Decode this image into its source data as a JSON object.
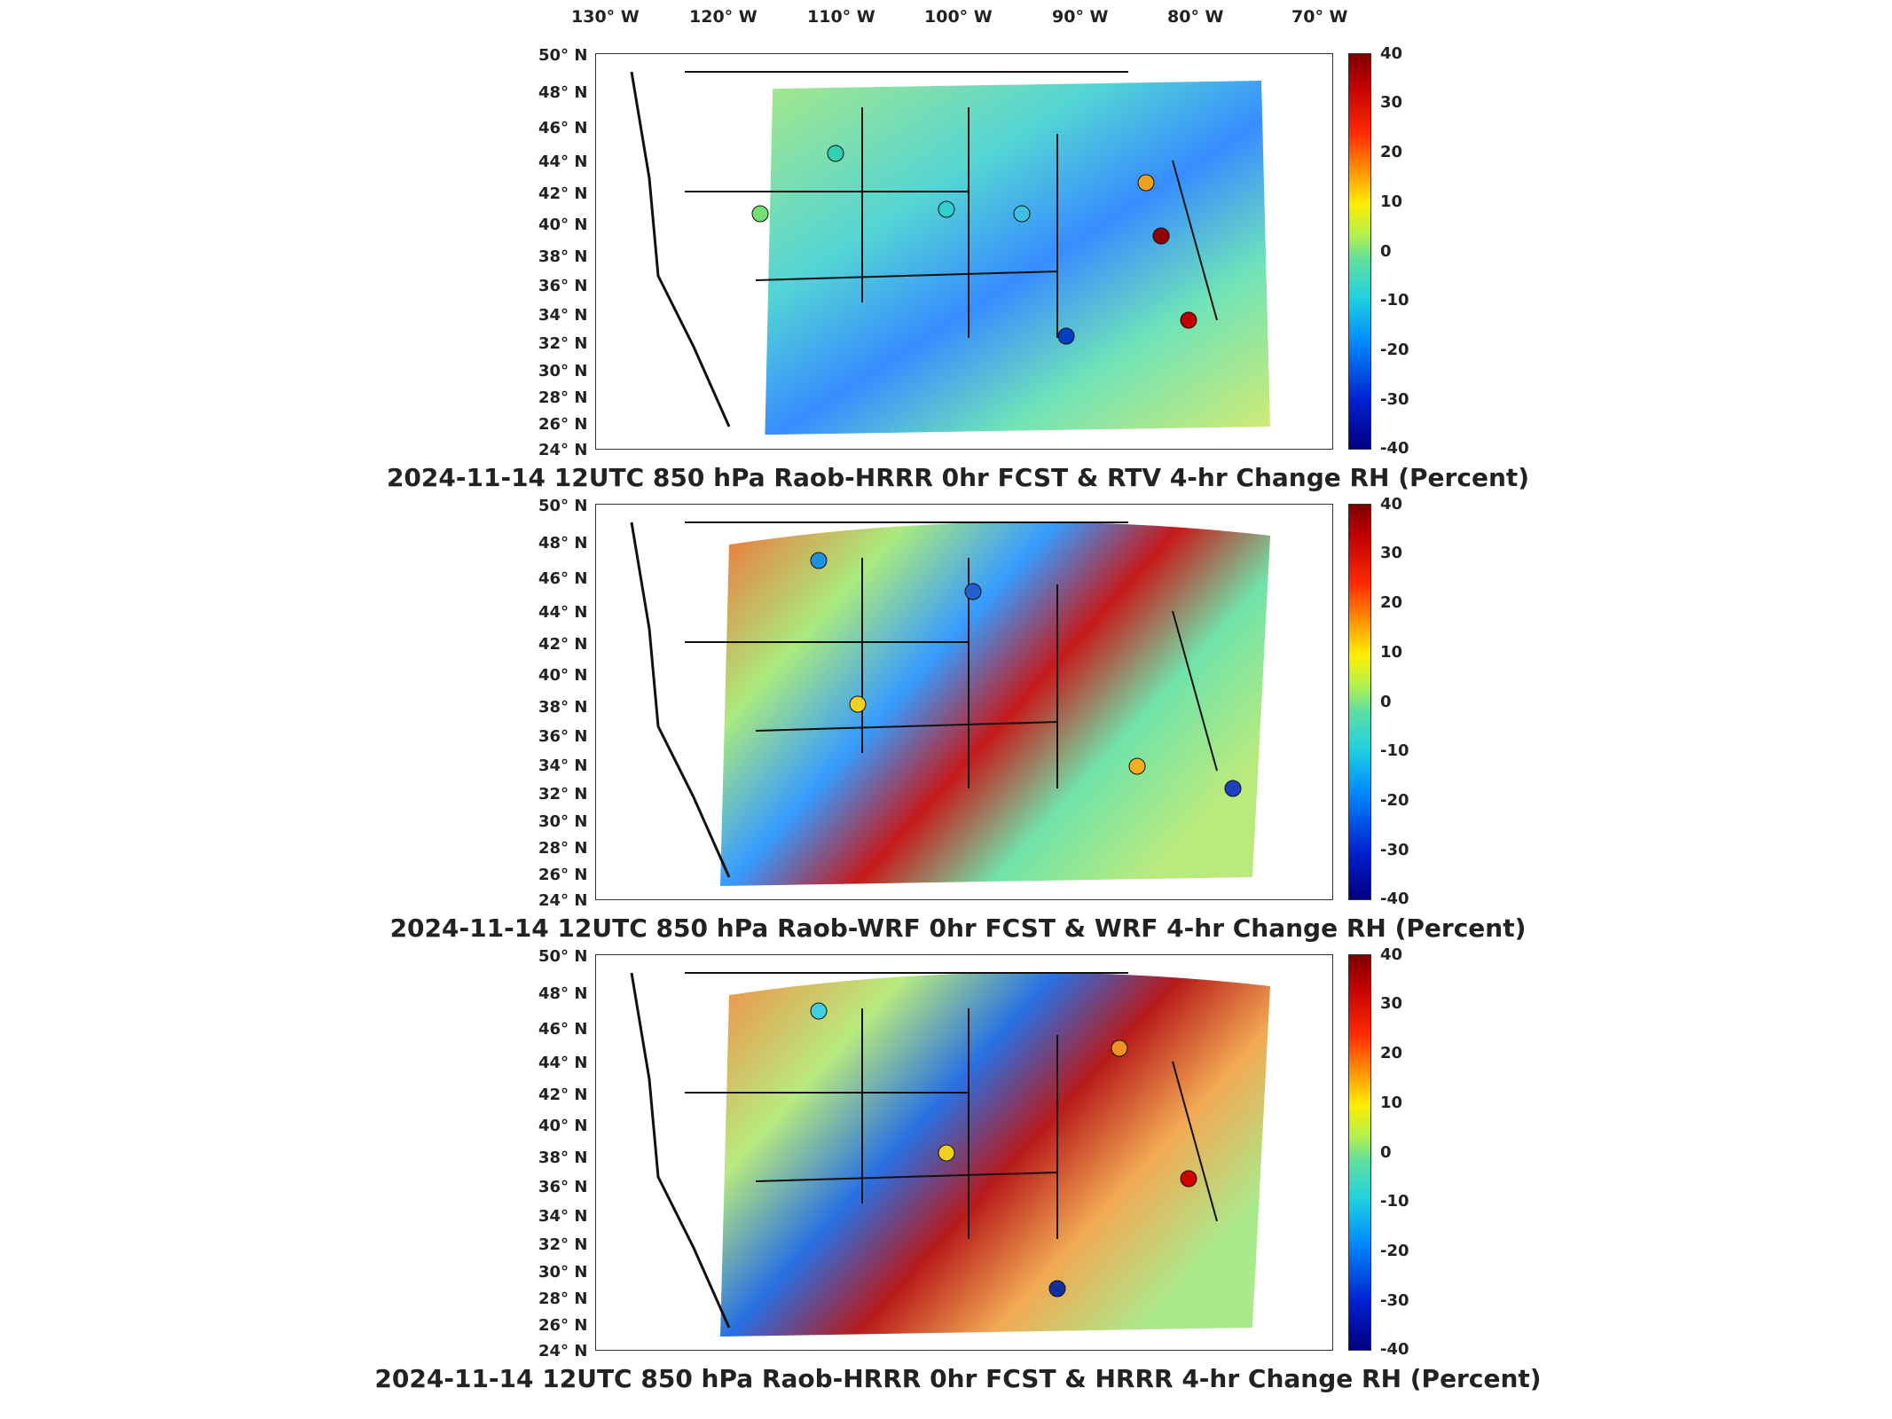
{
  "longitude_labels": [
    "130° W",
    "120° W",
    "110° W",
    "100° W",
    "90° W",
    "80° W",
    "70° W"
  ],
  "latitude_labels": [
    "50° N",
    "48° N",
    "46° N",
    "44° N",
    "42° N",
    "40° N",
    "38° N",
    "36° N",
    "34° N",
    "32° N",
    "30° N",
    "28° N",
    "26° N",
    "24° N"
  ],
  "colorbar_ticks": [
    "40",
    "30",
    "20",
    "10",
    "0",
    "-10",
    "-20",
    "-30",
    "-40"
  ],
  "colors": {
    "max": "#7f0000",
    "mid": "#a0f080",
    "min": "#000080",
    "land_outline": "#111111"
  },
  "panels": [
    {
      "title": "2024-11-14 12UTC 850 hPa Raob-HRRR 0hr FCST & RTV 4-hr Change RH (Percent)"
    },
    {
      "title": "2024-11-14 12UTC 850 hPa Raob-WRF 0hr FCST & WRF 4-hr Change RH (Percent)"
    },
    {
      "title": "2024-11-14 12UTC 850 hPa Raob-HRRR 0hr FCST & HRRR 4-hr Change RH (Percent)"
    }
  ]
}
